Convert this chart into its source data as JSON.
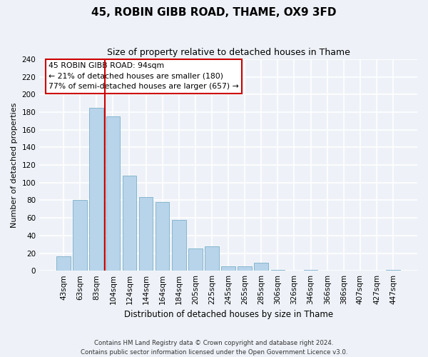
{
  "title": "45, ROBIN GIBB ROAD, THAME, OX9 3FD",
  "subtitle": "Size of property relative to detached houses in Thame",
  "xlabel": "Distribution of detached houses by size in Thame",
  "ylabel": "Number of detached properties",
  "bar_labels": [
    "43sqm",
    "63sqm",
    "83sqm",
    "104sqm",
    "124sqm",
    "144sqm",
    "164sqm",
    "184sqm",
    "205sqm",
    "225sqm",
    "245sqm",
    "265sqm",
    "285sqm",
    "306sqm",
    "326sqm",
    "346sqm",
    "366sqm",
    "386sqm",
    "407sqm",
    "427sqm",
    "447sqm"
  ],
  "bar_values": [
    16,
    80,
    185,
    175,
    108,
    84,
    78,
    58,
    25,
    28,
    5,
    5,
    9,
    1,
    0,
    1,
    0,
    0,
    0,
    0,
    1
  ],
  "bar_color": "#b8d4ea",
  "bar_edge_color": "#7aafc8",
  "vline_color": "#cc0000",
  "ylim": [
    0,
    240
  ],
  "yticks": [
    0,
    20,
    40,
    60,
    80,
    100,
    120,
    140,
    160,
    180,
    200,
    220,
    240
  ],
  "annotation_line1": "45 ROBIN GIBB ROAD: 94sqm",
  "annotation_line2": "← 21% of detached houses are smaller (180)",
  "annotation_line3": "77% of semi-detached houses are larger (657) →",
  "annotation_box_color": "#ffffff",
  "annotation_box_edgecolor": "#cc0000",
  "footer_line1": "Contains HM Land Registry data © Crown copyright and database right 2024.",
  "footer_line2": "Contains public sector information licensed under the Open Government Licence v3.0.",
  "background_color": "#eef2f8",
  "grid_color": "#ffffff",
  "vline_x_index": 2
}
